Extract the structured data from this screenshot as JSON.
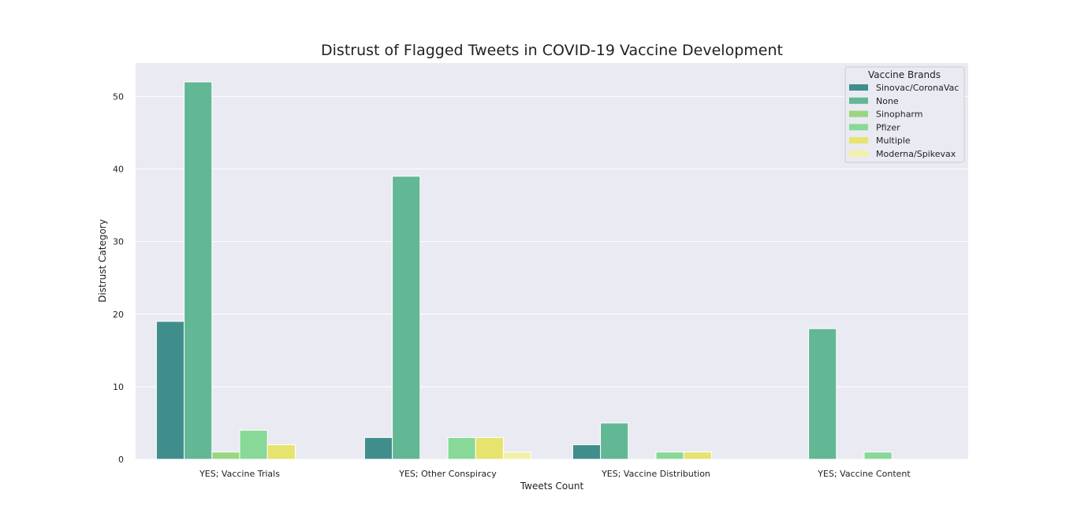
{
  "chart_data": {
    "type": "bar",
    "title": "Distrust of Flagged Tweets in COVID-19 Vaccine Development",
    "xlabel": "Tweets Count",
    "ylabel": "Distrust Category",
    "categories": [
      "YES; Vaccine Trials",
      "YES; Other Conspiracy",
      "YES; Vaccine Distribution",
      "YES; Vaccine Content"
    ],
    "ylim": [
      0,
      54.6
    ],
    "yticks": [
      0,
      10,
      20,
      30,
      40,
      50
    ],
    "grid": true,
    "legend_title": "Vaccine Brands",
    "legend_position": "top-right",
    "series": [
      {
        "name": "Sinovac/CoronaVac",
        "color": "#3f8e8c",
        "values": [
          19,
          3,
          2,
          0
        ]
      },
      {
        "name": "None",
        "color": "#62b795",
        "values": [
          52,
          39,
          5,
          18
        ]
      },
      {
        "name": "Sinopharm",
        "color": "#9ad681",
        "values": [
          1,
          0,
          0,
          0
        ]
      },
      {
        "name": "Pfizer",
        "color": "#88d898",
        "values": [
          4,
          3,
          1,
          1
        ]
      },
      {
        "name": "Multiple",
        "color": "#e6e36f",
        "values": [
          2,
          3,
          1,
          0
        ]
      },
      {
        "name": "Moderna/Spikevax",
        "color": "#f3f1a9",
        "values": [
          0,
          1,
          0,
          0
        ]
      }
    ]
  }
}
